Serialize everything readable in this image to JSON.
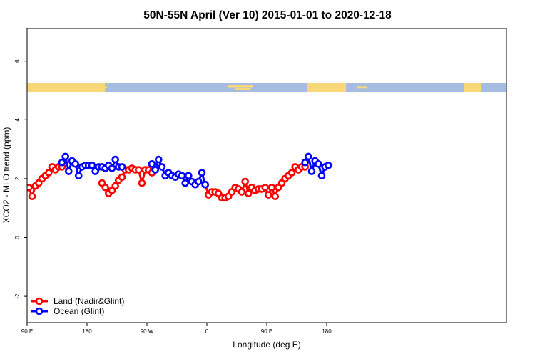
{
  "chart_data": {
    "type": "line",
    "title": "50N-55N April (Ver 10)   2015-01-01 to 2020-12-18",
    "xlabel": "Longitude (deg E)",
    "ylabel": "XCO2 - MLO trend (ppm)",
    "xlim": [
      90,
      450
    ],
    "ylim": [
      -2.4,
      7.1
    ],
    "x_ticks": [
      {
        "value": 90,
        "label": "90 E"
      },
      {
        "value": 180,
        "label": "180"
      },
      {
        "value": 270,
        "label": "90 W"
      },
      {
        "value": 360,
        "label": "0"
      },
      {
        "value": 450,
        "label": "90 E"
      },
      {
        "value": 540,
        "label": "180"
      }
    ],
    "y_ticks": [
      {
        "value": -2,
        "label": "-2"
      },
      {
        "value": 0,
        "label": "0"
      },
      {
        "value": 2,
        "label": "2"
      },
      {
        "value": 4,
        "label": "4"
      },
      {
        "value": 6,
        "label": "6"
      }
    ],
    "grid": false,
    "legend_position": "bottom-left",
    "land_sea_band": {
      "y_range": [
        4.95,
        5.25
      ],
      "land_color": "#f8d878",
      "ocean_color": "#a6bce0"
    },
    "series": [
      {
        "name": "Land (Nadir&Glint)",
        "color": "#ff0000",
        "segments": [
          [
            {
              "x": 92.5,
              "y": 1.7
            },
            {
              "x": 97.5,
              "y": 1.4
            },
            {
              "x": 102.5,
              "y": 1.75
            },
            {
              "x": 107.5,
              "y": 1.85
            },
            {
              "x": 112.5,
              "y": 2.0
            },
            {
              "x": 117.5,
              "y": 2.1
            },
            {
              "x": 122.5,
              "y": 2.2
            },
            {
              "x": 127.5,
              "y": 2.4
            },
            {
              "x": 132.5,
              "y": 2.3
            },
            {
              "x": 137.5,
              "y": 2.4
            },
            {
              "x": 142.5,
              "y": 2.4
            }
          ],
          [
            {
              "x": 202.5,
              "y": 1.85
            },
            {
              "x": 207.5,
              "y": 1.7
            },
            {
              "x": 212.5,
              "y": 1.5
            },
            {
              "x": 217.5,
              "y": 1.6
            },
            {
              "x": 222.5,
              "y": 1.75
            },
            {
              "x": 227.5,
              "y": 1.95
            },
            {
              "x": 232.5,
              "y": 2.05
            },
            {
              "x": 237.5,
              "y": 2.3
            },
            {
              "x": 242.5,
              "y": 2.3
            },
            {
              "x": 247.5,
              "y": 2.35
            },
            {
              "x": 252.5,
              "y": 2.3
            },
            {
              "x": 257.5,
              "y": 2.3
            },
            {
              "x": 262.5,
              "y": 1.85
            },
            {
              "x": 267.5,
              "y": 2.3
            },
            {
              "x": 272.5,
              "y": 2.3
            },
            {
              "x": 277.5,
              "y": 2.2
            }
          ],
          [
            {
              "x": 357.5,
              "y": 1.8
            },
            {
              "x": 362.5,
              "y": 1.45
            },
            {
              "x": 367.5,
              "y": 1.55
            },
            {
              "x": 372.5,
              "y": 1.55
            },
            {
              "x": 377.5,
              "y": 1.5
            },
            {
              "x": 382.5,
              "y": 1.35
            },
            {
              "x": 387.5,
              "y": 1.35
            },
            {
              "x": 392.5,
              "y": 1.4
            },
            {
              "x": 397.5,
              "y": 1.55
            },
            {
              "x": 402.5,
              "y": 1.7
            },
            {
              "x": 407.5,
              "y": 1.65
            },
            {
              "x": 412.5,
              "y": 1.55
            },
            {
              "x": 417.5,
              "y": 1.9
            },
            {
              "x": 422.5,
              "y": 1.5
            },
            {
              "x": 427.5,
              "y": 1.7
            },
            {
              "x": 432.5,
              "y": 1.6
            },
            {
              "x": 437.5,
              "y": 1.65
            },
            {
              "x": 442.5,
              "y": 1.65
            },
            {
              "x": 447.5,
              "y": 1.7
            },
            {
              "x": 452.5,
              "y": 1.45
            },
            {
              "x": 457.5,
              "y": 1.7
            },
            {
              "x": 462.5,
              "y": 1.4
            },
            {
              "x": 467.5,
              "y": 1.7
            },
            {
              "x": 472.5,
              "y": 1.85
            },
            {
              "x": 477.5,
              "y": 2.0
            },
            {
              "x": 482.5,
              "y": 2.1
            },
            {
              "x": 487.5,
              "y": 2.2
            },
            {
              "x": 492.5,
              "y": 2.4
            },
            {
              "x": 497.5,
              "y": 2.3
            },
            {
              "x": 502.5,
              "y": 2.4
            },
            {
              "x": 507.5,
              "y": 2.4
            }
          ]
        ]
      },
      {
        "name": "Ocean (Glint)",
        "color": "#0000ff",
        "segments": [
          [
            {
              "x": 142.5,
              "y": 2.55
            },
            {
              "x": 147.5,
              "y": 2.75
            },
            {
              "x": 152.5,
              "y": 2.25
            },
            {
              "x": 157.5,
              "y": 2.6
            },
            {
              "x": 162.5,
              "y": 2.5
            },
            {
              "x": 167.5,
              "y": 2.1
            },
            {
              "x": 172.5,
              "y": 2.4
            },
            {
              "x": 177.5,
              "y": 2.45
            },
            {
              "x": 182.5,
              "y": 2.45
            },
            {
              "x": 187.5,
              "y": 2.45
            },
            {
              "x": 192.5,
              "y": 2.25
            },
            {
              "x": 197.5,
              "y": 2.4
            },
            {
              "x": 202.5,
              "y": 2.4
            },
            {
              "x": 207.5,
              "y": 2.35
            },
            {
              "x": 212.5,
              "y": 2.45
            },
            {
              "x": 217.5,
              "y": 2.35
            },
            {
              "x": 222.5,
              "y": 2.65
            },
            {
              "x": 227.5,
              "y": 2.4
            },
            {
              "x": 232.5,
              "y": 2.4
            }
          ],
          [
            {
              "x": 277.5,
              "y": 2.5
            },
            {
              "x": 282.5,
              "y": 2.3
            },
            {
              "x": 287.5,
              "y": 2.65
            },
            {
              "x": 292.5,
              "y": 2.4
            },
            {
              "x": 297.5,
              "y": 2.1
            },
            {
              "x": 302.5,
              "y": 2.2
            },
            {
              "x": 307.5,
              "y": 2.1
            },
            {
              "x": 312.5,
              "y": 2.05
            },
            {
              "x": 317.5,
              "y": 2.15
            },
            {
              "x": 322.5,
              "y": 2.1
            },
            {
              "x": 327.5,
              "y": 1.85
            },
            {
              "x": 332.5,
              "y": 2.1
            },
            {
              "x": 337.5,
              "y": 1.9
            },
            {
              "x": 342.5,
              "y": 1.8
            },
            {
              "x": 347.5,
              "y": 1.9
            },
            {
              "x": 352.5,
              "y": 2.2
            },
            {
              "x": 357.5,
              "y": 1.8
            }
          ],
          [
            {
              "x": 507.5,
              "y": 2.55
            },
            {
              "x": 512.5,
              "y": 2.75
            },
            {
              "x": 517.5,
              "y": 2.25
            },
            {
              "x": 522.5,
              "y": 2.6
            },
            {
              "x": 527.5,
              "y": 2.5
            },
            {
              "x": 532.5,
              "y": 2.1
            },
            {
              "x": 537.5,
              "y": 2.4
            },
            {
              "x": 542.5,
              "y": 2.45
            }
          ]
        ]
      }
    ]
  }
}
